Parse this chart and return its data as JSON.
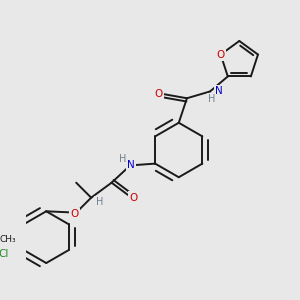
{
  "background_color": "#e8e8e8",
  "bond_color": "#1a1a1a",
  "atom_colors": {
    "O": "#cc0000",
    "N": "#0000cc",
    "H": "#708090",
    "Cl": "#228b22",
    "C": "#1a1a1a"
  },
  "figsize": [
    3.0,
    3.0
  ],
  "dpi": 100
}
